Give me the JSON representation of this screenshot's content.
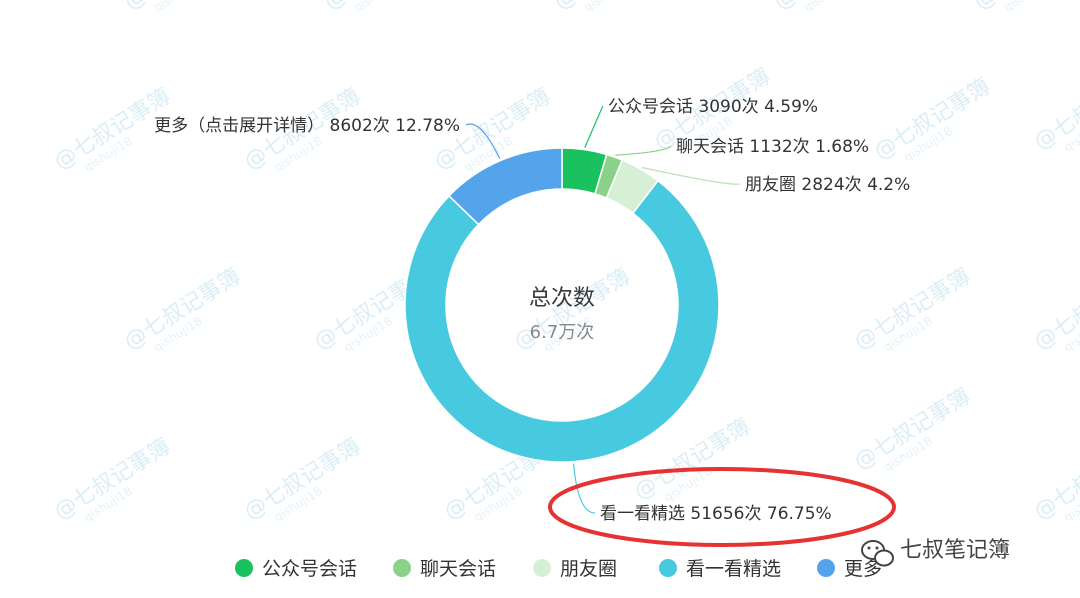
{
  "colors": {
    "gzh": "#19c25f",
    "chat": "#8ad28a",
    "moments": "#d6f0d6",
    "kanyikan": "#47c9df",
    "more": "#54a4ec",
    "highlight": "#e53232",
    "watermark": "#dbeef6"
  },
  "chart_data": {
    "type": "pie",
    "center": {
      "title": "总次数",
      "value": "6.7万次"
    },
    "slices": [
      {
        "name": "公众号会话",
        "count": 3090,
        "count_label": "3090次",
        "percent": 4.59,
        "percent_label": "4.59%",
        "color": "#19c25f"
      },
      {
        "name": "聊天会话",
        "count": 1132,
        "count_label": "1132次",
        "percent": 1.68,
        "percent_label": "1.68%",
        "color": "#8ad28a"
      },
      {
        "name": "朋友圈",
        "count": 2824,
        "count_label": "2824次",
        "percent": 4.2,
        "percent_label": "4.2%",
        "color": "#d6f0d6"
      },
      {
        "name": "看一看精选",
        "count": 51656,
        "count_label": "51656次",
        "percent": 76.75,
        "percent_label": "76.75%",
        "color": "#47c9df"
      },
      {
        "name": "更多（点击展开详情）",
        "count": 8602,
        "count_label": "8602次",
        "percent": 12.78,
        "percent_label": "12.78%",
        "color": "#54a4ec"
      }
    ],
    "legend": {
      "placement": "bottom-center",
      "items": [
        {
          "name": "公众号会话",
          "color": "#19c25f"
        },
        {
          "name": "聊天会话",
          "color": "#8ad28a"
        },
        {
          "name": "朋友圈",
          "color": "#d6f0d6"
        },
        {
          "name": "看一看精选",
          "color": "#47c9df"
        },
        {
          "name": "更多",
          "color": "#54a4ec"
        }
      ]
    },
    "highlighted_slice": "看一看精选"
  },
  "watermark": {
    "text": "@七叔记事簿",
    "handle": "qishuji18"
  },
  "brand": {
    "icon": "wechat-icon",
    "name": "七叔笔记簿"
  }
}
